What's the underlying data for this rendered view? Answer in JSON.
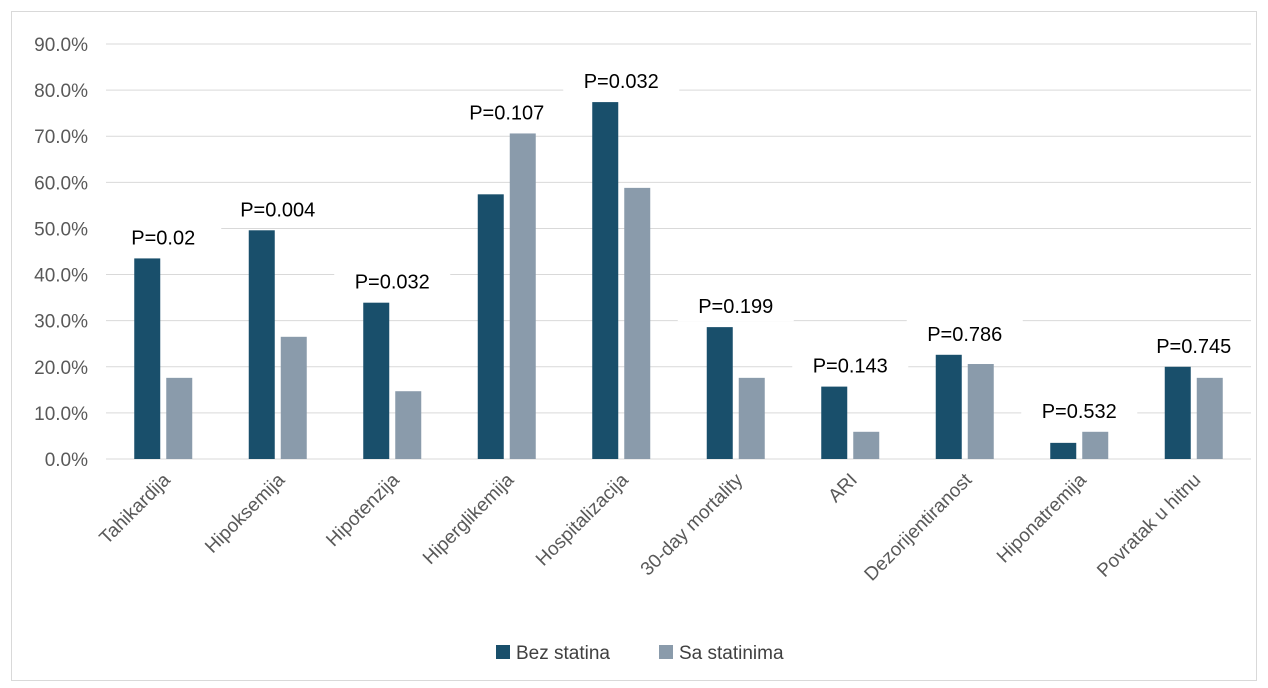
{
  "chart_data": {
    "type": "bar",
    "title": "",
    "xlabel": "",
    "ylabel": "",
    "ylim": [
      0,
      90
    ],
    "y_ticks": [
      "0.0%",
      "10.0%",
      "20.0%",
      "30.0%",
      "40.0%",
      "50.0%",
      "60.0%",
      "70.0%",
      "80.0%",
      "90.0%"
    ],
    "grid": true,
    "legend_position": "bottom",
    "categories": [
      "Tahikardija",
      "Hipoksemija",
      "Hipotenzija",
      "Hiperglikemija",
      "Hospitalizacija",
      "30-day mortality",
      "ARI",
      "Dezorijentiranost",
      "Hiponatremija",
      "Povratak u hitnu"
    ],
    "series": [
      {
        "name": "Bez statina",
        "color": "#194f6b",
        "values": [
          43.5,
          49.6,
          33.9,
          57.4,
          77.4,
          28.6,
          15.7,
          22.6,
          3.5,
          20.0
        ]
      },
      {
        "name": "Sa statinima",
        "color": "#8a9bab",
        "values": [
          17.6,
          26.5,
          14.7,
          70.6,
          58.8,
          17.6,
          5.9,
          20.6,
          5.9,
          17.6
        ]
      }
    ],
    "annotations": [
      "P=0.02",
      "P=0.004",
      "P=0.032",
      "P=0.107",
      "P=0.032",
      "P=0.199",
      "P=0.143",
      "P=0.786",
      "P=0.532",
      "P=0.745"
    ]
  }
}
